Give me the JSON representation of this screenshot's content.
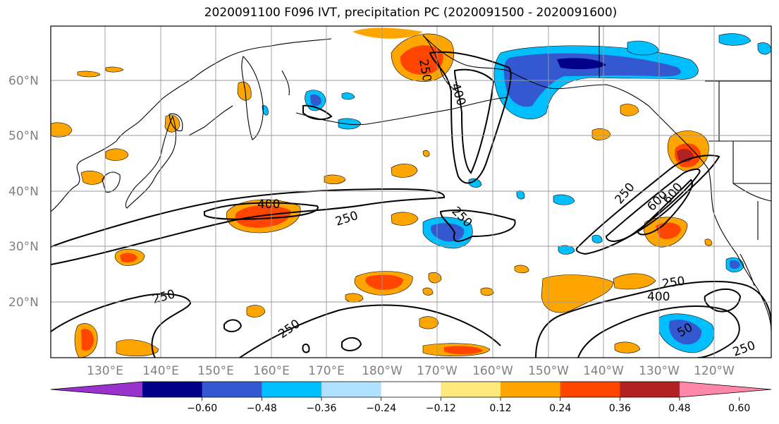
{
  "title": "2020091100 F096 IVT, precipitation PC (2020091500 - 2020091600)",
  "lat_labels": [
    "60°N",
    "50°N",
    "40°N",
    "30°N",
    "20°N"
  ],
  "lon_labels": [
    "130°E",
    "140°E",
    "150°E",
    "160°E",
    "170°E",
    "180°W",
    "170°W",
    "160°W",
    "150°W",
    "140°W",
    "130°W",
    "120°W"
  ],
  "colorbar": {
    "colors": [
      "#9932cc",
      "#00008b",
      "#3458d0",
      "#00bfff",
      "#b0e2ff",
      "#ffffff",
      "#ffe87c",
      "#ffa500",
      "#ff4500",
      "#b22222",
      "#ff88aa"
    ],
    "ticks": [
      "−0.60",
      "−0.48",
      "−0.36",
      "−0.24",
      "−0.12",
      "0.12",
      "0.24",
      "0.36",
      "0.48",
      "0.60"
    ]
  },
  "contour_labels": [
    "400",
    "250",
    "250",
    "250",
    "400",
    "250",
    "250",
    "600",
    "600",
    "250",
    "400",
    "250",
    "50"
  ]
}
